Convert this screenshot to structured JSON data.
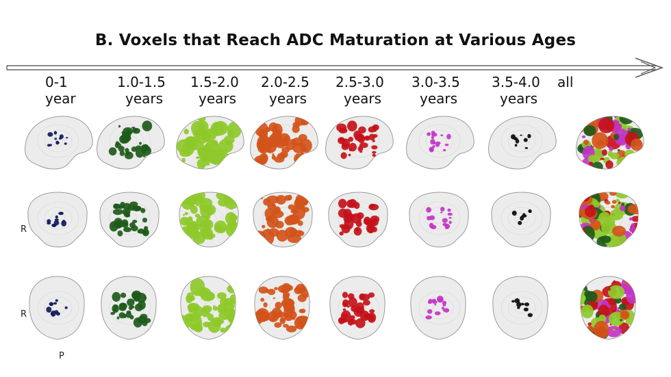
{
  "title": "B. Voxels that Reach ADC Maturation at Various Ages",
  "columns": [
    {
      "l1": "0-1",
      "l2": "year",
      "color": "#101a5a",
      "density": 0.08
    },
    {
      "l1": "1.0-1.5",
      "l2": "years",
      "color": "#1e5a1a",
      "density": 0.45
    },
    {
      "l1": "1.5-2.0",
      "l2": "years",
      "color": "#8ec92a",
      "density": 0.85
    },
    {
      "l1": "2.0-2.5",
      "l2": "years",
      "color": "#d2541a",
      "density": 0.75
    },
    {
      "l1": "2.5-3.0",
      "l2": "years",
      "color": "#c4121a",
      "density": 0.45
    },
    {
      "l1": "3.0-3.5",
      "l2": "years",
      "color": "#c334c8",
      "density": 0.15
    },
    {
      "l1": "3.5-4.0",
      "l2": "years",
      "color": "#0a0a0a",
      "density": 0.04
    },
    {
      "l1": "all",
      "l2": "",
      "color": "#7fbf2a",
      "density": 1.0
    }
  ],
  "views": [
    "lateral",
    "coronal",
    "axial"
  ],
  "orientation_labels": {
    "r1": "R",
    "r2": "R",
    "p": "P"
  }
}
